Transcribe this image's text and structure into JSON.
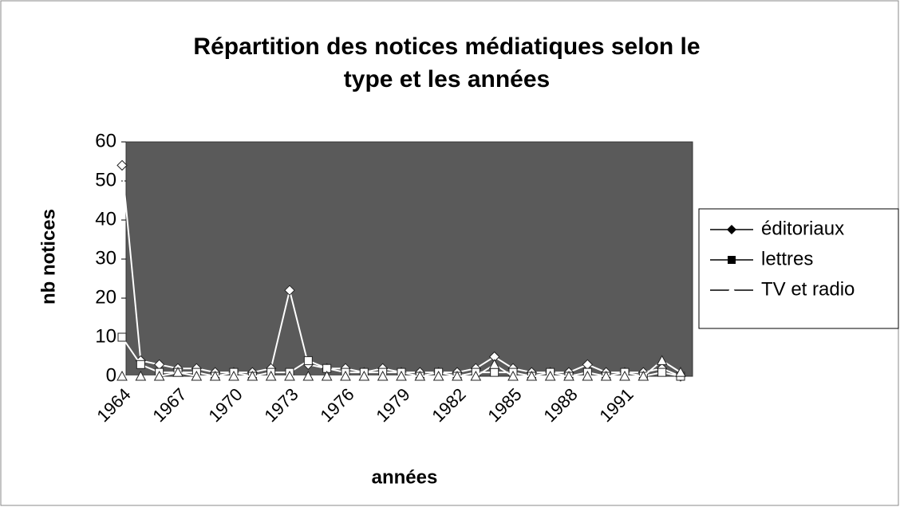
{
  "chart_data": {
    "type": "line",
    "title": "Répartition des notices médiatiques selon le",
    "subtitle": "type et les années",
    "x_label": "années",
    "y_label": "nb notices",
    "categories": [
      1964,
      null,
      null,
      1967,
      null,
      null,
      1970,
      null,
      null,
      1973,
      null,
      null,
      1976,
      null,
      null,
      1979,
      null,
      null,
      1982,
      null,
      null,
      1985,
      null,
      null,
      1988,
      null,
      null,
      1991,
      null,
      null,
      null
    ],
    "series": [
      {
        "name": "éditoriaux",
        "color": "#ffffff",
        "marker": "diamond",
        "values": [
          54,
          4,
          3,
          2,
          2,
          1,
          1,
          1,
          2,
          22,
          3,
          2,
          2,
          1,
          2,
          1,
          1,
          1,
          1,
          2,
          5,
          2,
          1,
          1,
          1,
          3,
          1,
          1,
          1,
          2,
          0
        ]
      },
      {
        "name": "lettres",
        "color": "#ffffff",
        "marker": "square",
        "values": [
          10,
          3,
          1,
          1,
          1,
          0,
          1,
          0,
          1,
          1,
          4,
          2,
          1,
          1,
          1,
          1,
          0,
          1,
          0,
          1,
          1,
          1,
          0,
          1,
          0,
          1,
          0,
          1,
          0,
          1,
          0
        ]
      },
      {
        "name": "TV et radio",
        "color": "#ffffff",
        "marker": "triangle",
        "values": [
          0,
          0,
          0,
          1,
          0,
          0,
          0,
          0,
          0,
          0,
          0,
          0,
          0,
          0,
          0,
          0,
          0,
          0,
          0,
          0,
          3,
          0,
          0,
          0,
          0,
          0,
          0,
          0,
          0,
          4,
          1
        ]
      }
    ],
    "ylim": [
      0,
      60
    ],
    "yticks": [
      0,
      10,
      20,
      30,
      40,
      50,
      60
    ],
    "legend": "right",
    "plot_background": "#5a5a5a"
  }
}
